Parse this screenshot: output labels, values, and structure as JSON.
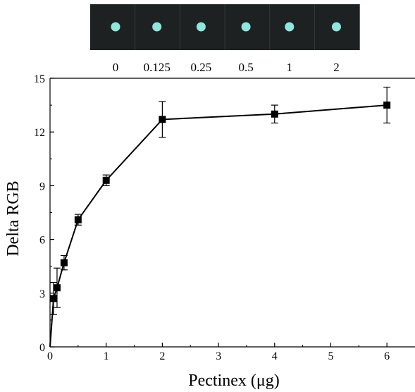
{
  "image_strip": {
    "labels": [
      "0",
      "0.125",
      "0.25",
      "0.5",
      "1",
      "2"
    ],
    "background_color": "#1d2122",
    "spot_color": "#8fe6dd"
  },
  "chart_data": {
    "type": "line",
    "xlabel": "Pectinex (μg)",
    "ylabel": "Delta RGB",
    "xlim": [
      0,
      6.5
    ],
    "ylim": [
      0,
      15
    ],
    "xticks": [
      0,
      1,
      2,
      3,
      4,
      5,
      6
    ],
    "yticks": [
      0,
      3,
      6,
      9,
      12,
      15
    ],
    "grid": false,
    "series": [
      {
        "marker": "square",
        "color": "#000000",
        "x": [
          0,
          0.0625,
          0.125,
          0.25,
          0.5,
          1,
          2,
          4,
          6
        ],
        "y": [
          0,
          2.7,
          3.3,
          4.7,
          7.1,
          9.3,
          12.7,
          13.0,
          13.5
        ],
        "yerr": [
          0,
          0.9,
          1.1,
          0.4,
          0.3,
          0.3,
          1.0,
          0.5,
          1.0
        ]
      }
    ]
  }
}
